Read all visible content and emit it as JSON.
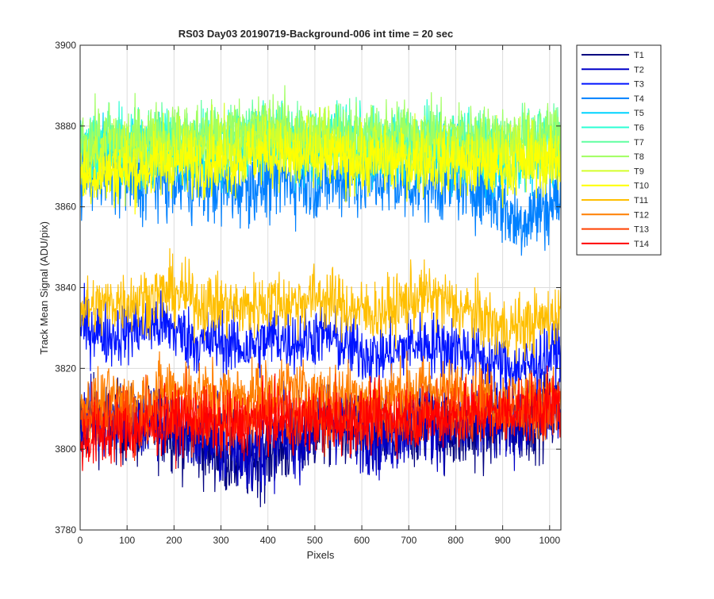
{
  "chart_data": {
    "type": "line",
    "title": "RS03 Day03 20190719-Background-006 int time = 20 sec",
    "xlabel": "Pixels",
    "ylabel": "Track Mean Signal (ADU/pix)",
    "xlim": [
      0,
      1024
    ],
    "ylim": [
      3780,
      3900
    ],
    "xticks": [
      0,
      100,
      200,
      300,
      400,
      500,
      600,
      700,
      800,
      900,
      1000
    ],
    "yticks": [
      3780,
      3800,
      3820,
      3840,
      3860,
      3880,
      3900
    ],
    "grid": true,
    "legend_position": "outside-top-right",
    "x": [
      0,
      32,
      64,
      96,
      128,
      160,
      192,
      224,
      256,
      288,
      320,
      352,
      384,
      416,
      448,
      480,
      512,
      544,
      576,
      608,
      640,
      672,
      704,
      736,
      768,
      800,
      832,
      864,
      896,
      928,
      960,
      992,
      1023
    ],
    "series": [
      {
        "name": "T1",
        "color": "#00007f",
        "noise": 5,
        "values": [
          3806,
          3808,
          3807,
          3806,
          3805,
          3806,
          3805,
          3803,
          3801,
          3800,
          3798,
          3797,
          3798,
          3800,
          3801,
          3803,
          3805,
          3806,
          3805,
          3803,
          3802,
          3803,
          3805,
          3806,
          3805,
          3804,
          3804,
          3805,
          3806,
          3806,
          3807,
          3809,
          3810
        ]
      },
      {
        "name": "T2",
        "color": "#0000c8",
        "noise": 5,
        "values": [
          3807,
          3808,
          3808,
          3807,
          3806,
          3807,
          3806,
          3804,
          3803,
          3802,
          3800,
          3799,
          3800,
          3802,
          3803,
          3804,
          3806,
          3807,
          3806,
          3804,
          3803,
          3804,
          3806,
          3807,
          3806,
          3805,
          3805,
          3806,
          3807,
          3807,
          3808,
          3809,
          3810
        ]
      },
      {
        "name": "T3",
        "color": "#0014ff",
        "noise": 4,
        "values": [
          3830,
          3830,
          3828,
          3829,
          3830,
          3831,
          3830,
          3828,
          3826,
          3827,
          3826,
          3825,
          3826,
          3828,
          3827,
          3827,
          3829,
          3827,
          3825,
          3824,
          3823,
          3824,
          3826,
          3826,
          3826,
          3825,
          3824,
          3822,
          3821,
          3820,
          3821,
          3823,
          3825
        ]
      },
      {
        "name": "T4",
        "color": "#0080ff",
        "noise": 5,
        "values": [
          3868,
          3869,
          3868,
          3867,
          3866,
          3867,
          3867,
          3866,
          3866,
          3865,
          3865,
          3866,
          3866,
          3867,
          3867,
          3867,
          3866,
          3867,
          3867,
          3867,
          3867,
          3866,
          3866,
          3866,
          3866,
          3867,
          3866,
          3864,
          3861,
          3856,
          3858,
          3860,
          3862
        ]
      },
      {
        "name": "T5",
        "color": "#00d4ff",
        "noise": 4,
        "values": [
          3874,
          3875,
          3874,
          3874,
          3873,
          3874,
          3874,
          3873,
          3872,
          3872,
          3872,
          3873,
          3873,
          3874,
          3874,
          3873,
          3873,
          3874,
          3873,
          3873,
          3873,
          3873,
          3872,
          3872,
          3872,
          3873,
          3872,
          3871,
          3870,
          3869,
          3870,
          3871,
          3872
        ]
      },
      {
        "name": "T6",
        "color": "#2bffd4",
        "noise": 4,
        "values": [
          3876,
          3876,
          3876,
          3875,
          3875,
          3876,
          3876,
          3876,
          3876,
          3876,
          3877,
          3877,
          3878,
          3878,
          3877,
          3877,
          3876,
          3877,
          3877,
          3876,
          3876,
          3876,
          3876,
          3876,
          3876,
          3876,
          3876,
          3875,
          3875,
          3875,
          3875,
          3876,
          3876
        ]
      },
      {
        "name": "T7",
        "color": "#60ffa0",
        "noise": 4,
        "values": [
          3876,
          3876,
          3876,
          3876,
          3876,
          3877,
          3877,
          3877,
          3877,
          3877,
          3878,
          3878,
          3879,
          3879,
          3878,
          3878,
          3877,
          3878,
          3878,
          3877,
          3877,
          3877,
          3877,
          3877,
          3877,
          3877,
          3877,
          3876,
          3876,
          3876,
          3876,
          3877,
          3877
        ]
      },
      {
        "name": "T8",
        "color": "#a0ff60",
        "noise": 4,
        "values": [
          3876,
          3877,
          3877,
          3877,
          3877,
          3878,
          3878,
          3878,
          3878,
          3878,
          3879,
          3879,
          3880,
          3880,
          3879,
          3879,
          3878,
          3879,
          3878,
          3878,
          3878,
          3878,
          3878,
          3878,
          3878,
          3878,
          3877,
          3877,
          3877,
          3877,
          3877,
          3878,
          3878
        ]
      },
      {
        "name": "T9",
        "color": "#d4ff2b",
        "noise": 4,
        "values": [
          3872,
          3872,
          3872,
          3872,
          3873,
          3873,
          3874,
          3874,
          3874,
          3874,
          3874,
          3875,
          3876,
          3876,
          3875,
          3875,
          3874,
          3875,
          3874,
          3874,
          3874,
          3874,
          3874,
          3874,
          3874,
          3874,
          3873,
          3873,
          3873,
          3873,
          3874,
          3874,
          3874
        ]
      },
      {
        "name": "T10",
        "color": "#ffff00",
        "noise": 4,
        "values": [
          3867,
          3868,
          3868,
          3869,
          3869,
          3870,
          3871,
          3871,
          3871,
          3871,
          3871,
          3872,
          3873,
          3873,
          3872,
          3872,
          3871,
          3872,
          3871,
          3871,
          3871,
          3871,
          3871,
          3871,
          3871,
          3871,
          3870,
          3870,
          3870,
          3870,
          3871,
          3871,
          3871
        ]
      },
      {
        "name": "T11",
        "color": "#ffbf00",
        "noise": 4,
        "values": [
          3835,
          3835,
          3836,
          3837,
          3837,
          3838,
          3839,
          3838,
          3836,
          3836,
          3835,
          3835,
          3836,
          3837,
          3836,
          3837,
          3838,
          3836,
          3835,
          3834,
          3834,
          3835,
          3837,
          3838,
          3837,
          3835,
          3834,
          3832,
          3830,
          3830,
          3831,
          3832,
          3834
        ]
      },
      {
        "name": "T12",
        "color": "#ff7f00",
        "noise": 4,
        "values": [
          3811,
          3811,
          3812,
          3812,
          3812,
          3814,
          3815,
          3815,
          3814,
          3814,
          3813,
          3813,
          3814,
          3815,
          3815,
          3814,
          3814,
          3814,
          3814,
          3813,
          3813,
          3814,
          3815,
          3815,
          3815,
          3814,
          3814,
          3813,
          3812,
          3812,
          3812,
          3812,
          3813
        ]
      },
      {
        "name": "T13",
        "color": "#ff4000",
        "noise": 4,
        "values": [
          3807,
          3807,
          3807,
          3807,
          3807,
          3808,
          3809,
          3809,
          3808,
          3808,
          3807,
          3807,
          3808,
          3809,
          3809,
          3808,
          3808,
          3808,
          3808,
          3808,
          3808,
          3808,
          3809,
          3809,
          3809,
          3809,
          3809,
          3809,
          3809,
          3809,
          3810,
          3810,
          3811
        ]
      },
      {
        "name": "T14",
        "color": "#ff0000",
        "noise": 4,
        "values": [
          3802,
          3803,
          3804,
          3804,
          3805,
          3806,
          3807,
          3807,
          3807,
          3806,
          3806,
          3806,
          3807,
          3807,
          3807,
          3807,
          3807,
          3807,
          3807,
          3807,
          3808,
          3808,
          3808,
          3808,
          3808,
          3808,
          3809,
          3809,
          3809,
          3810,
          3810,
          3811,
          3811
        ]
      }
    ]
  }
}
